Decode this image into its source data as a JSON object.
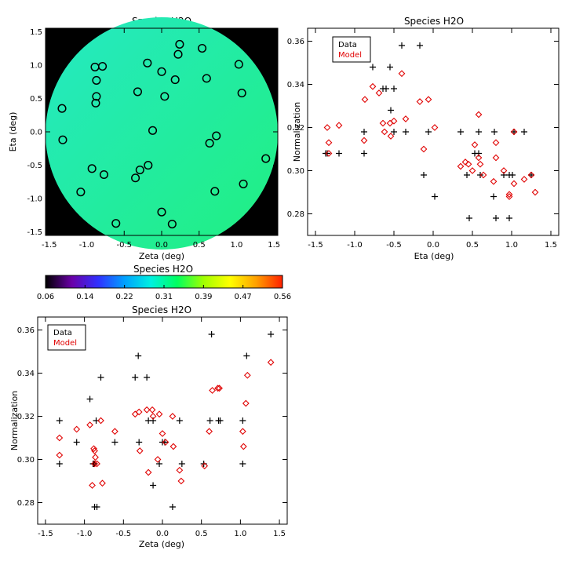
{
  "chart_data": [
    {
      "type": "scatter",
      "panel": "field-map",
      "title": "Species H2O",
      "xlabel": "Zeta (deg)",
      "ylabel": "Eta (deg)",
      "xlim": [
        -1.55,
        1.55
      ],
      "ylim": [
        -1.55,
        1.55
      ],
      "xticks": [
        "-1.5",
        "-1.0",
        "-0.5",
        "0.0",
        "0.5",
        "1.0",
        "1.5"
      ],
      "yticks": [
        "-1.5",
        "-1.0",
        "-0.5",
        "0.0",
        "0.5",
        "1.0",
        "1.5"
      ],
      "background": "#000000",
      "field_colors": {
        "upper_left": "#25e8c8",
        "lower_right": "#20f07a"
      },
      "marker": "open-circle",
      "marker_color": "#000000",
      "points": [
        {
          "x": 0.24,
          "y": 1.31
        },
        {
          "x": 0.54,
          "y": 1.25
        },
        {
          "x": 0.22,
          "y": 1.16
        },
        {
          "x": -0.19,
          "y": 1.03
        },
        {
          "x": 1.03,
          "y": 1.01
        },
        {
          "x": -0.79,
          "y": 0.98
        },
        {
          "x": -0.89,
          "y": 0.97
        },
        {
          "x": 0.0,
          "y": 0.9
        },
        {
          "x": 0.18,
          "y": 0.78
        },
        {
          "x": 0.6,
          "y": 0.8
        },
        {
          "x": -0.87,
          "y": 0.77
        },
        {
          "x": -0.32,
          "y": 0.6
        },
        {
          "x": 1.07,
          "y": 0.58
        },
        {
          "x": -0.87,
          "y": 0.53
        },
        {
          "x": 0.04,
          "y": 0.53
        },
        {
          "x": -0.88,
          "y": 0.43
        },
        {
          "x": -1.33,
          "y": 0.35
        },
        {
          "x": -0.12,
          "y": 0.02
        },
        {
          "x": 0.73,
          "y": -0.06
        },
        {
          "x": -1.32,
          "y": -0.12
        },
        {
          "x": 0.64,
          "y": -0.17
        },
        {
          "x": 1.39,
          "y": -0.4
        },
        {
          "x": -0.18,
          "y": -0.5
        },
        {
          "x": -0.93,
          "y": -0.55
        },
        {
          "x": -0.29,
          "y": -0.57
        },
        {
          "x": -0.77,
          "y": -0.64
        },
        {
          "x": -0.35,
          "y": -0.69
        },
        {
          "x": 1.09,
          "y": -0.78
        },
        {
          "x": 0.71,
          "y": -0.89
        },
        {
          "x": -1.08,
          "y": -0.9
        },
        {
          "x": 0.0,
          "y": -1.2
        },
        {
          "x": 0.14,
          "y": -1.38
        },
        {
          "x": -0.61,
          "y": -1.37
        }
      ]
    },
    {
      "type": "scatter",
      "panel": "normalization-vs-eta",
      "title": "Species H2O",
      "xlabel": "Eta (deg)",
      "ylabel": "Normalization",
      "xlim": [
        -1.6,
        1.6
      ],
      "ylim": [
        0.27,
        0.366
      ],
      "xticks": [
        "-1.5",
        "-1.0",
        "-0.5",
        "0.0",
        "0.5",
        "1.0",
        "1.5"
      ],
      "yticks": [
        "0.28",
        "0.30",
        "0.32",
        "0.34",
        "0.36"
      ],
      "legend": [
        "Data",
        "Model"
      ],
      "legend_position": "top-left",
      "series": [
        {
          "name": "Data",
          "marker": "plus",
          "color": "#000000",
          "points": [
            {
              "x": -1.37,
              "y": 0.308
            },
            {
              "x": -1.35,
              "y": 0.308
            },
            {
              "x": -1.2,
              "y": 0.308
            },
            {
              "x": -0.88,
              "y": 0.318
            },
            {
              "x": -0.88,
              "y": 0.308
            },
            {
              "x": -0.77,
              "y": 0.348
            },
            {
              "x": -0.64,
              "y": 0.338
            },
            {
              "x": -0.6,
              "y": 0.338
            },
            {
              "x": -0.55,
              "y": 0.348
            },
            {
              "x": -0.54,
              "y": 0.328
            },
            {
              "x": -0.5,
              "y": 0.338
            },
            {
              "x": -0.5,
              "y": 0.318
            },
            {
              "x": -0.4,
              "y": 0.358
            },
            {
              "x": -0.35,
              "y": 0.318
            },
            {
              "x": -0.17,
              "y": 0.358
            },
            {
              "x": -0.12,
              "y": 0.298
            },
            {
              "x": -0.06,
              "y": 0.318
            },
            {
              "x": 0.02,
              "y": 0.288
            },
            {
              "x": 0.35,
              "y": 0.318
            },
            {
              "x": 0.43,
              "y": 0.298
            },
            {
              "x": 0.46,
              "y": 0.278
            },
            {
              "x": 0.53,
              "y": 0.308
            },
            {
              "x": 0.58,
              "y": 0.308
            },
            {
              "x": 0.58,
              "y": 0.318
            },
            {
              "x": 0.6,
              "y": 0.298
            },
            {
              "x": 0.78,
              "y": 0.318
            },
            {
              "x": 0.77,
              "y": 0.288
            },
            {
              "x": 0.8,
              "y": 0.278
            },
            {
              "x": 0.9,
              "y": 0.298
            },
            {
              "x": 0.97,
              "y": 0.278
            },
            {
              "x": 0.97,
              "y": 0.298
            },
            {
              "x": 1.01,
              "y": 0.298
            },
            {
              "x": 1.03,
              "y": 0.318
            },
            {
              "x": 1.16,
              "y": 0.318
            },
            {
              "x": 1.25,
              "y": 0.298
            }
          ]
        },
        {
          "name": "Model",
          "marker": "diamond",
          "color": "#e00000",
          "points": [
            {
              "x": -1.35,
              "y": 0.32
            },
            {
              "x": -1.33,
              "y": 0.313
            },
            {
              "x": -1.33,
              "y": 0.308
            },
            {
              "x": -1.2,
              "y": 0.321
            },
            {
              "x": -0.88,
              "y": 0.314
            },
            {
              "x": -0.87,
              "y": 0.333
            },
            {
              "x": -0.77,
              "y": 0.339
            },
            {
              "x": -0.69,
              "y": 0.336
            },
            {
              "x": -0.64,
              "y": 0.322
            },
            {
              "x": -0.62,
              "y": 0.318
            },
            {
              "x": -0.55,
              "y": 0.322
            },
            {
              "x": -0.54,
              "y": 0.316
            },
            {
              "x": -0.5,
              "y": 0.323
            },
            {
              "x": -0.4,
              "y": 0.345
            },
            {
              "x": -0.35,
              "y": 0.324
            },
            {
              "x": -0.17,
              "y": 0.332
            },
            {
              "x": -0.12,
              "y": 0.31
            },
            {
              "x": -0.06,
              "y": 0.333
            },
            {
              "x": 0.02,
              "y": 0.32
            },
            {
              "x": 0.35,
              "y": 0.302
            },
            {
              "x": 0.41,
              "y": 0.304
            },
            {
              "x": 0.45,
              "y": 0.303
            },
            {
              "x": 0.5,
              "y": 0.3
            },
            {
              "x": 0.53,
              "y": 0.312
            },
            {
              "x": 0.58,
              "y": 0.326
            },
            {
              "x": 0.58,
              "y": 0.306
            },
            {
              "x": 0.6,
              "y": 0.303
            },
            {
              "x": 0.64,
              "y": 0.298
            },
            {
              "x": 0.77,
              "y": 0.295
            },
            {
              "x": 0.8,
              "y": 0.313
            },
            {
              "x": 0.8,
              "y": 0.306
            },
            {
              "x": 0.9,
              "y": 0.3
            },
            {
              "x": 0.97,
              "y": 0.288
            },
            {
              "x": 0.97,
              "y": 0.289
            },
            {
              "x": 1.03,
              "y": 0.294
            },
            {
              "x": 1.03,
              "y": 0.318
            },
            {
              "x": 1.16,
              "y": 0.296
            },
            {
              "x": 1.25,
              "y": 0.298
            },
            {
              "x": 1.3,
              "y": 0.29
            }
          ]
        }
      ]
    },
    {
      "type": "heatmap",
      "panel": "colorbar",
      "title": "Species H2O",
      "tick_labels": [
        "0.06",
        "0.14",
        "0.22",
        "0.31",
        "0.39",
        "0.47",
        "0.56"
      ],
      "range": [
        0.06,
        0.56
      ],
      "colormap_stops": [
        "#000000",
        "#6a00a8",
        "#3030ff",
        "#00a0ff",
        "#00f0e0",
        "#00ff60",
        "#a0ff00",
        "#ffff00",
        "#ffa000",
        "#ff2000"
      ]
    },
    {
      "type": "scatter",
      "panel": "normalization-vs-zeta",
      "title": "Species H2O",
      "xlabel": "Zeta (deg)",
      "ylabel": "Normalization",
      "xlim": [
        -1.6,
        1.6
      ],
      "ylim": [
        0.27,
        0.366
      ],
      "xticks": [
        "-1.5",
        "-1.0",
        "-0.5",
        "0.0",
        "0.5",
        "1.0",
        "1.5"
      ],
      "yticks": [
        "0.28",
        "0.30",
        "0.32",
        "0.34",
        "0.36"
      ],
      "legend": [
        "Data",
        "Model"
      ],
      "legend_position": "top-left",
      "series": [
        {
          "name": "Data",
          "marker": "plus",
          "color": "#000000",
          "points": [
            {
              "x": -1.32,
              "y": 0.318
            },
            {
              "x": -1.32,
              "y": 0.298
            },
            {
              "x": -1.1,
              "y": 0.308
            },
            {
              "x": -0.93,
              "y": 0.328
            },
            {
              "x": -0.89,
              "y": 0.298
            },
            {
              "x": -0.88,
              "y": 0.298
            },
            {
              "x": -0.87,
              "y": 0.298
            },
            {
              "x": -0.87,
              "y": 0.278
            },
            {
              "x": -0.85,
              "y": 0.318
            },
            {
              "x": -0.84,
              "y": 0.278
            },
            {
              "x": -0.79,
              "y": 0.338
            },
            {
              "x": -0.61,
              "y": 0.308
            },
            {
              "x": -0.35,
              "y": 0.338
            },
            {
              "x": -0.31,
              "y": 0.348
            },
            {
              "x": -0.3,
              "y": 0.308
            },
            {
              "x": -0.2,
              "y": 0.338
            },
            {
              "x": -0.18,
              "y": 0.318
            },
            {
              "x": -0.12,
              "y": 0.318
            },
            {
              "x": -0.12,
              "y": 0.288
            },
            {
              "x": -0.04,
              "y": 0.298
            },
            {
              "x": 0.0,
              "y": 0.308
            },
            {
              "x": 0.03,
              "y": 0.308
            },
            {
              "x": 0.13,
              "y": 0.278
            },
            {
              "x": 0.22,
              "y": 0.318
            },
            {
              "x": 0.25,
              "y": 0.298
            },
            {
              "x": 0.53,
              "y": 0.298
            },
            {
              "x": 0.61,
              "y": 0.318
            },
            {
              "x": 0.63,
              "y": 0.358
            },
            {
              "x": 0.72,
              "y": 0.318
            },
            {
              "x": 0.74,
              "y": 0.318
            },
            {
              "x": 1.03,
              "y": 0.318
            },
            {
              "x": 1.03,
              "y": 0.298
            },
            {
              "x": 1.08,
              "y": 0.348
            },
            {
              "x": 1.39,
              "y": 0.358
            }
          ]
        },
        {
          "name": "Model",
          "marker": "diamond",
          "color": "#e00000",
          "points": [
            {
              "x": -1.32,
              "y": 0.31
            },
            {
              "x": -1.32,
              "y": 0.302
            },
            {
              "x": -1.1,
              "y": 0.314
            },
            {
              "x": -0.93,
              "y": 0.316
            },
            {
              "x": -0.9,
              "y": 0.288
            },
            {
              "x": -0.88,
              "y": 0.305
            },
            {
              "x": -0.87,
              "y": 0.304
            },
            {
              "x": -0.87,
              "y": 0.298
            },
            {
              "x": -0.86,
              "y": 0.301
            },
            {
              "x": -0.84,
              "y": 0.298
            },
            {
              "x": -0.79,
              "y": 0.318
            },
            {
              "x": -0.77,
              "y": 0.289
            },
            {
              "x": -0.61,
              "y": 0.313
            },
            {
              "x": -0.35,
              "y": 0.321
            },
            {
              "x": -0.3,
              "y": 0.322
            },
            {
              "x": -0.29,
              "y": 0.304
            },
            {
              "x": -0.2,
              "y": 0.323
            },
            {
              "x": -0.18,
              "y": 0.294
            },
            {
              "x": -0.13,
              "y": 0.323
            },
            {
              "x": -0.12,
              "y": 0.32
            },
            {
              "x": -0.06,
              "y": 0.3
            },
            {
              "x": -0.04,
              "y": 0.321
            },
            {
              "x": 0.0,
              "y": 0.312
            },
            {
              "x": 0.04,
              "y": 0.308
            },
            {
              "x": 0.13,
              "y": 0.32
            },
            {
              "x": 0.14,
              "y": 0.306
            },
            {
              "x": 0.22,
              "y": 0.295
            },
            {
              "x": 0.24,
              "y": 0.29
            },
            {
              "x": 0.54,
              "y": 0.297
            },
            {
              "x": 0.6,
              "y": 0.313
            },
            {
              "x": 0.64,
              "y": 0.332
            },
            {
              "x": 0.71,
              "y": 0.333
            },
            {
              "x": 0.73,
              "y": 0.333
            },
            {
              "x": 1.03,
              "y": 0.313
            },
            {
              "x": 1.04,
              "y": 0.306
            },
            {
              "x": 1.07,
              "y": 0.326
            },
            {
              "x": 1.09,
              "y": 0.339
            },
            {
              "x": 1.39,
              "y": 0.345
            }
          ]
        }
      ]
    }
  ]
}
